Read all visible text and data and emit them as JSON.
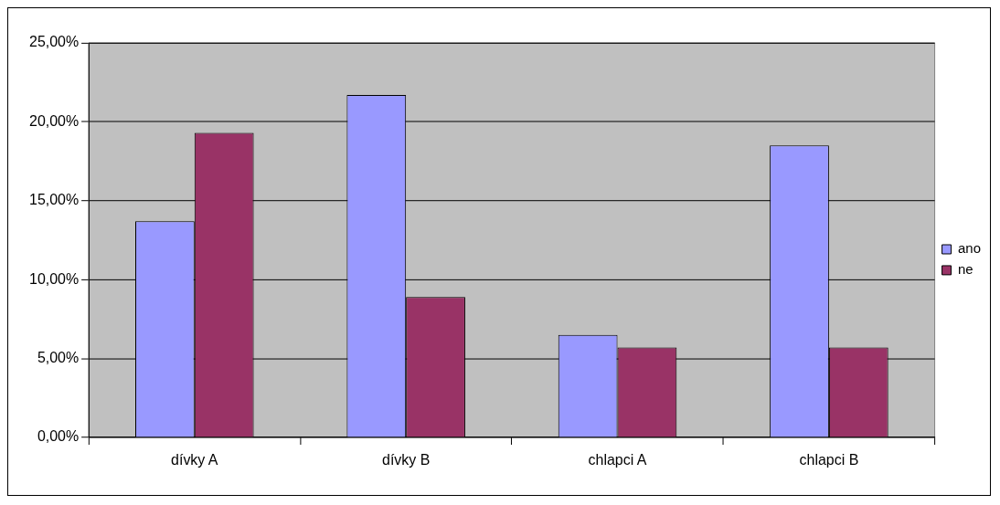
{
  "chart_data": {
    "type": "bar",
    "categories": [
      "dívky A",
      "dívky B",
      "chlapci A",
      "chlapci B"
    ],
    "series": [
      {
        "name": "ano",
        "color": "#9999ff",
        "values": [
          13.7,
          21.7,
          6.5,
          18.5
        ]
      },
      {
        "name": "ne",
        "color": "#993366",
        "values": [
          19.3,
          8.9,
          5.7,
          5.7
        ]
      }
    ],
    "ylim": [
      0,
      25
    ],
    "yticks": [
      {
        "value": 0,
        "label": "0,00%"
      },
      {
        "value": 5,
        "label": "5,00%"
      },
      {
        "value": 10,
        "label": "10,00%"
      },
      {
        "value": 15,
        "label": "15,00%"
      },
      {
        "value": 20,
        "label": "20,00%"
      },
      {
        "value": 25,
        "label": "25,00%"
      }
    ],
    "grid": "y",
    "legend": "right"
  }
}
